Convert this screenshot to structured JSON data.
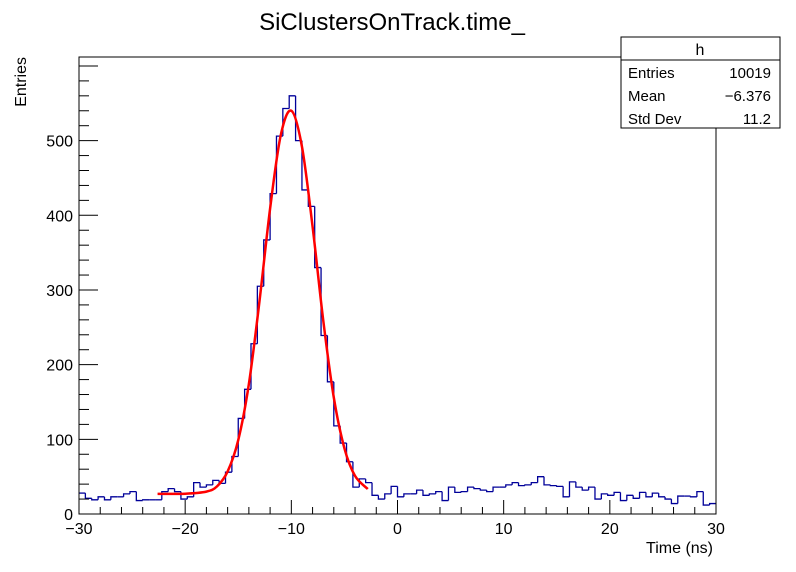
{
  "chart_data": {
    "type": "histogram",
    "title": "SiClustersOnTrack.time_",
    "xlabel": "Time (ns)",
    "ylabel": "Entries",
    "xlim": [
      -30,
      30
    ],
    "ylim": [
      0,
      612
    ],
    "x_ticks": [
      "−30",
      "−20",
      "−10",
      "0",
      "10",
      "20",
      "30"
    ],
    "x_tick_values": [
      -30,
      -20,
      -10,
      0,
      10,
      20,
      30
    ],
    "y_ticks": [
      "0",
      "100",
      "200",
      "300",
      "400",
      "500"
    ],
    "y_tick_values": [
      0,
      100,
      200,
      300,
      400,
      500
    ],
    "grid": false,
    "bins": 100,
    "values": [
      28,
      21,
      19,
      23,
      19,
      23,
      23,
      27,
      30,
      18,
      19,
      19,
      19,
      30,
      34,
      30,
      20,
      23,
      42,
      36,
      39,
      45,
      41,
      56,
      77,
      128,
      167,
      228,
      305,
      367,
      429,
      506,
      543,
      560,
      500,
      434,
      412,
      330,
      239,
      177,
      118,
      95,
      70,
      36,
      47,
      42,
      25,
      20,
      27,
      37,
      23,
      27,
      27,
      32,
      25,
      27,
      30,
      18,
      36,
      29,
      30,
      36,
      34,
      32,
      30,
      36,
      36,
      39,
      42,
      38,
      39,
      42,
      50,
      39,
      38,
      37,
      23,
      43,
      36,
      32,
      36,
      20,
      27,
      25,
      29,
      18,
      25,
      21,
      29,
      23,
      28,
      23,
      20,
      14,
      24,
      24,
      23,
      30,
      12,
      14
    ],
    "histogram_color": "#000099",
    "fit": {
      "color": "#ff0000",
      "x": [
        -22.6,
        -20,
        -18,
        -17,
        -16,
        -15,
        -14,
        -13,
        -12,
        -11,
        -10,
        -9,
        -8,
        -7,
        -6,
        -5,
        -4,
        -2.8
      ],
      "y": [
        27,
        27.2,
        30,
        37,
        57,
        99,
        174,
        285,
        409,
        507,
        540,
        492,
        385,
        260,
        156,
        88,
        51,
        33.5
      ]
    },
    "stats_box": {
      "title": "h",
      "rows": [
        {
          "label": "Entries",
          "value": "10019"
        },
        {
          "label": "Mean",
          "value": "−6.376"
        },
        {
          "label": "Std Dev",
          "value": "11.2"
        }
      ],
      "placement": "top-right"
    }
  }
}
